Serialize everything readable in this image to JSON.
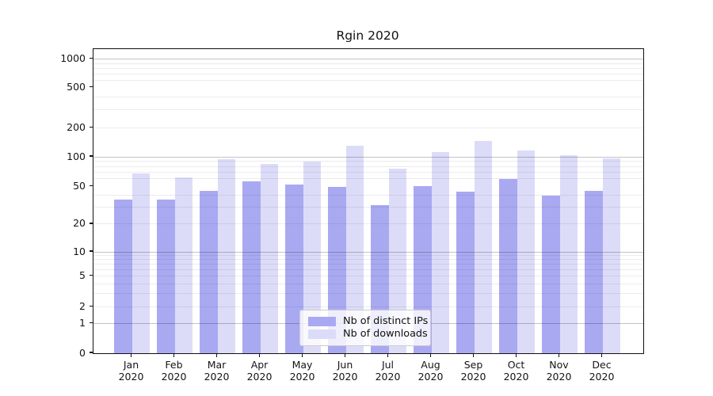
{
  "title": "Rgin 2020",
  "legend": {
    "items": [
      {
        "label": "Nb of distinct IPs",
        "color": "#a9a9f2"
      },
      {
        "label": "Nb of downloads",
        "color": "#dcdcf9"
      }
    ]
  },
  "y_axis": {
    "ticks": [
      {
        "label": "0",
        "value": 0,
        "pct": 1.0
      },
      {
        "label": "1",
        "value": 1,
        "pct": 0.9026
      },
      {
        "label": "2",
        "value": 2,
        "pct": 0.8471
      },
      {
        "label": "5",
        "value": 5,
        "pct": 0.7464
      },
      {
        "label": "10",
        "value": 10,
        "pct": 0.6667
      },
      {
        "label": "20",
        "value": 20,
        "pct": 0.5755
      },
      {
        "label": "50",
        "value": 50,
        "pct": 0.4513
      },
      {
        "label": "100",
        "value": 100,
        "pct": 0.3542
      },
      {
        "label": "200",
        "value": 200,
        "pct": 0.2586
      },
      {
        "label": "500",
        "value": 500,
        "pct": 0.1266
      },
      {
        "label": "1000",
        "value": 1000,
        "pct": 0.0328
      }
    ],
    "grid_major_values": [
      1,
      10,
      100,
      1000
    ],
    "grid_minor_values": [
      2,
      3,
      4,
      5,
      6,
      7,
      8,
      9,
      20,
      30,
      40,
      60,
      70,
      80,
      90,
      200,
      300,
      400,
      600,
      700,
      800,
      900
    ]
  },
  "x_axis": {
    "year": "2020",
    "months": [
      "Jan",
      "Feb",
      "Mar",
      "Apr",
      "May",
      "Jun",
      "Jul",
      "Aug",
      "Sep",
      "Oct",
      "Nov",
      "Dec"
    ]
  },
  "chart_data": {
    "type": "bar",
    "title": "Rgin 2020",
    "categories": [
      "Jan 2020",
      "Feb 2020",
      "Mar 2020",
      "Apr 2020",
      "May 2020",
      "Jun 2020",
      "Jul 2020",
      "Aug 2020",
      "Sep 2020",
      "Oct 2020",
      "Nov 2020",
      "Dec 2020"
    ],
    "series": [
      {
        "name": "Nb of distinct IPs",
        "color": "#a9a9f2",
        "values": [
          36,
          36,
          45,
          56,
          52,
          49,
          32,
          50,
          44,
          59,
          40,
          45
        ]
      },
      {
        "name": "Nb of downloads",
        "color": "#dcdcf9",
        "values": [
          68,
          62,
          94,
          85,
          90,
          130,
          76,
          112,
          147,
          117,
          104,
          97
        ]
      }
    ],
    "xlabel": "",
    "ylabel": "",
    "yscale": "symlog",
    "ytick_values": [
      0,
      1,
      2,
      5,
      10,
      20,
      50,
      100,
      200,
      500,
      1000
    ],
    "ylim": [
      0,
      1280
    ],
    "grid": true,
    "legend_position": "lower center"
  },
  "colors": {
    "bar_ips": "#a9a9f2",
    "bar_downloads": "#dcdcf9",
    "grid_major": "#c3c3c3",
    "grid_minor": "#ececec",
    "spine": "#101010",
    "background": "#ffffff"
  }
}
